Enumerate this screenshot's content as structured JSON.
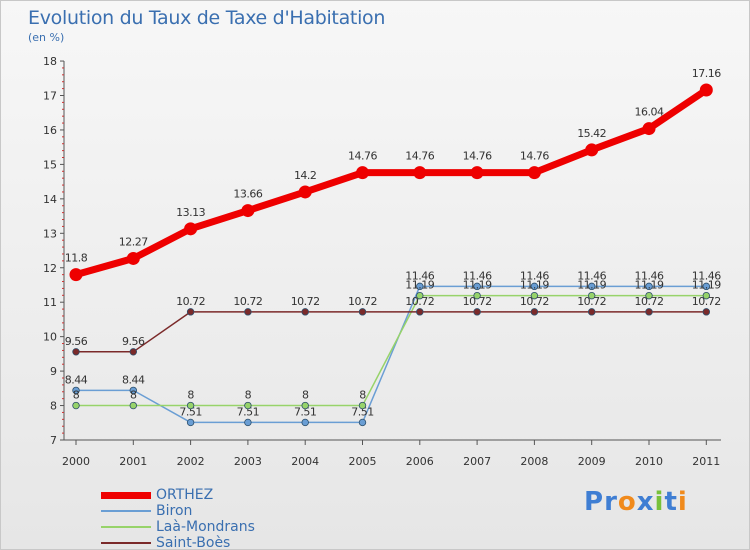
{
  "title": "Evolution du Taux de Taxe d'Habitation",
  "unit_label": "(en %)",
  "logo": {
    "letters": [
      {
        "char": "P",
        "color": "#3f7ed3"
      },
      {
        "char": "r",
        "color": "#3f7ed3"
      },
      {
        "char": "o",
        "color": "#f08a1c"
      },
      {
        "char": "x",
        "color": "#3f7ed3"
      },
      {
        "char": "i",
        "color": "#78c13a"
      },
      {
        "char": "t",
        "color": "#3f7ed3"
      },
      {
        "char": "i",
        "color": "#f08a1c"
      }
    ]
  },
  "chart_data": {
    "type": "line",
    "title": "Evolution du Taux de Taxe d'Habitation",
    "subtitle": "(en %)",
    "xlabel": "",
    "ylabel": "",
    "ylim": [
      7,
      18
    ],
    "yticks": [
      7,
      8,
      9,
      10,
      11,
      12,
      13,
      14,
      15,
      16,
      17,
      18
    ],
    "grid": false,
    "legend_position": "bottom-left",
    "x": [
      "2000",
      "2001",
      "2002",
      "2003",
      "2004",
      "2005",
      "2006",
      "2007",
      "2008",
      "2009",
      "2010",
      "2011"
    ],
    "series": [
      {
        "name": "ORTHEZ",
        "color": "#ee0000",
        "emphasis": true,
        "values": [
          11.8,
          12.27,
          13.13,
          13.66,
          14.2,
          14.76,
          14.76,
          14.76,
          14.76,
          15.42,
          16.04,
          17.16
        ],
        "labels": [
          "11.8",
          "12.27",
          "13.13",
          "13.66",
          "14.2",
          "14.76",
          "14.76",
          "14.76",
          "14.76",
          "15.42",
          "16.04",
          "17.16"
        ]
      },
      {
        "name": "Biron",
        "color": "#6a9ed4",
        "values": [
          8.44,
          8.44,
          7.51,
          7.51,
          7.51,
          7.51,
          11.46,
          11.46,
          11.46,
          11.46,
          11.46,
          11.46
        ],
        "labels": [
          "8.44",
          "8.44",
          "7.51",
          "7.51",
          "7.51",
          "7.51",
          "11.46",
          "11.46",
          "11.46",
          "11.46",
          "11.46",
          "11.46"
        ]
      },
      {
        "name": "Laà-Mondrans",
        "color": "#97d36a",
        "values": [
          8,
          8,
          8,
          8,
          8,
          8,
          11.19,
          11.19,
          11.19,
          11.19,
          11.19,
          11.19
        ],
        "labels": [
          "8",
          "8",
          "8",
          "8",
          "8",
          "8",
          "11.19",
          "11.19",
          "11.19",
          "11.19",
          "11.19",
          "11.19"
        ]
      },
      {
        "name": "Saint-Boès",
        "color": "#7b2a2a",
        "values": [
          9.56,
          9.56,
          10.72,
          10.72,
          10.72,
          10.72,
          10.72,
          10.72,
          10.72,
          10.72,
          10.72,
          10.72
        ],
        "labels": [
          "9.56",
          "9.56",
          "10.72",
          "10.72",
          "10.72",
          "10.72",
          "10.72",
          "10.72",
          "10.72",
          "10.72",
          "10.72",
          "10.72"
        ]
      }
    ]
  }
}
